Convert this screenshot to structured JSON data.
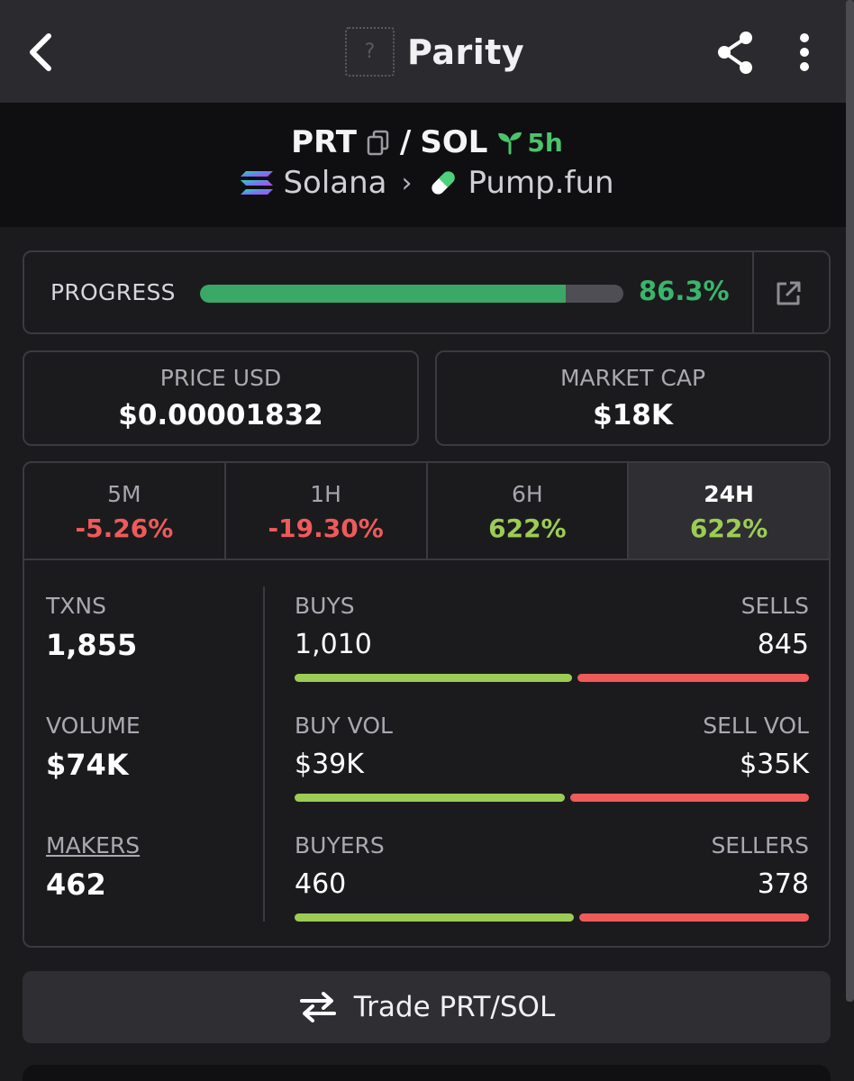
{
  "header": {
    "title": "Parity",
    "logo_placeholder": "?"
  },
  "pair": {
    "base": "PRT",
    "separator": "/",
    "quote": "SOL",
    "age": "5h",
    "chain": "Solana",
    "dex": "Pump.fun",
    "breadcrumb_separator": "›"
  },
  "progress": {
    "label": "PROGRESS",
    "value": "86.3%",
    "fraction": 0.863
  },
  "price": {
    "label": "PRICE USD",
    "value": "$0.00001832"
  },
  "market_cap": {
    "label": "MARKET CAP",
    "value": "$18K"
  },
  "timeframes": [
    {
      "name": "5M",
      "change": "-5.26%",
      "direction": "neg"
    },
    {
      "name": "1H",
      "change": "-19.30%",
      "direction": "neg"
    },
    {
      "name": "6H",
      "change": "622%",
      "direction": "pos"
    },
    {
      "name": "24H",
      "change": "622%",
      "direction": "pos",
      "active": true
    }
  ],
  "stats": {
    "txns": {
      "label": "TXNS",
      "value": "1,855"
    },
    "volume": {
      "label": "VOLUME",
      "value": "$74K"
    },
    "makers": {
      "label": "MAKERS",
      "value": "462"
    },
    "buys": {
      "left_label": "BUYS",
      "left_value": "1,010",
      "right_label": "SELLS",
      "right_value": "845",
      "left_fraction": 0.544
    },
    "vol": {
      "left_label": "BUY VOL",
      "left_value": "$39K",
      "right_label": "SELL VOL",
      "right_value": "$35K",
      "left_fraction": 0.53
    },
    "buyers": {
      "left_label": "BUYERS",
      "left_value": "460",
      "right_label": "SELLERS",
      "right_value": "378",
      "left_fraction": 0.549
    }
  },
  "trade_button": {
    "label": "Trade PRT/SOL"
  },
  "colors": {
    "positive": "#9ccc55",
    "negative": "#ef5a5a",
    "progress": "#3aa866",
    "age": "#4cc36b"
  }
}
